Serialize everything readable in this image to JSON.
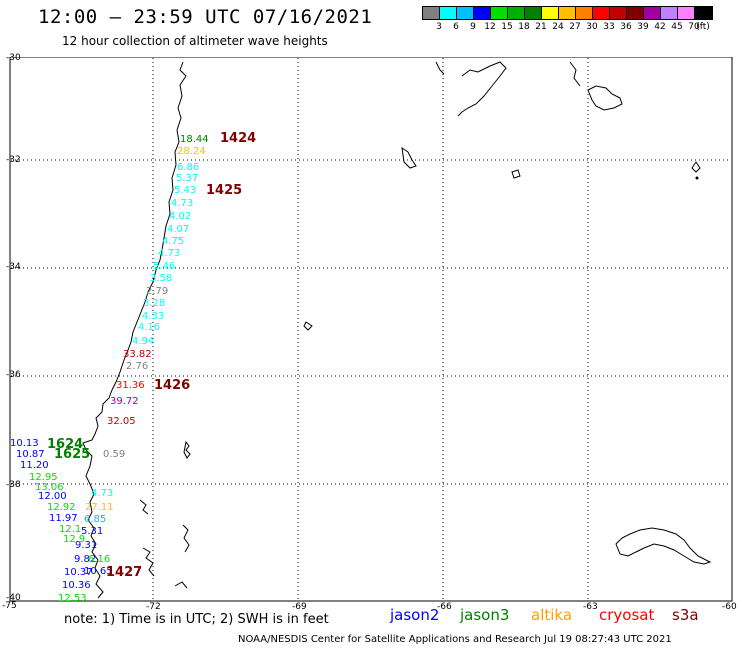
{
  "header": {
    "title": "12:00 — 23:59 UTC 07/16/2021",
    "subtitle": "12 hour collection of altimeter wave heights"
  },
  "colorbar": {
    "swatches": [
      "#808080",
      "#00ffff",
      "#00bfff",
      "#0000ff",
      "#00e000",
      "#00b000",
      "#008000",
      "#ffff00",
      "#ffc000",
      "#ff8000",
      "#ff0000",
      "#c00000",
      "#800000",
      "#a000a0",
      "#c080ff",
      "#ff80ff",
      "#000000"
    ],
    "ticks": [
      "3",
      "6",
      "9",
      "12",
      "15",
      "18",
      "21",
      "24",
      "27",
      "30",
      "33",
      "36",
      "39",
      "42",
      "45",
      "70",
      "(ft)"
    ]
  },
  "map": {
    "lat_labels": [
      "-30",
      "-32",
      "-34",
      "-36",
      "-38",
      "-40"
    ],
    "lon_labels": [
      "-75",
      "-72",
      "-69",
      "-66",
      "-63",
      "-60"
    ],
    "wave_heights": [
      {
        "text": "18.44",
        "color": "#008000"
      },
      {
        "text": "28.24",
        "color": "#ffc000"
      },
      {
        "text": "6.86",
        "color": "#00ffff"
      },
      {
        "text": "5.37",
        "color": "#00ffff"
      },
      {
        "text": "5.43",
        "color": "#00ffff"
      },
      {
        "text": "4.73",
        "color": "#00ffff"
      },
      {
        "text": "4.02",
        "color": "#00ffff"
      },
      {
        "text": "4.07",
        "color": "#00ffff"
      },
      {
        "text": "4.75",
        "color": "#00ffff"
      },
      {
        "text": "4.73",
        "color": "#00ffff"
      },
      {
        "text": "5.46",
        "color": "#00ffff"
      },
      {
        "text": "3.58",
        "color": "#00ffff"
      },
      {
        "text": "2.79",
        "color": "#808080"
      },
      {
        "text": "3.28",
        "color": "#00ffff"
      },
      {
        "text": "4.33",
        "color": "#00ffff"
      },
      {
        "text": "4.16",
        "color": "#00ffff"
      },
      {
        "text": "4.94",
        "color": "#00ffff"
      },
      {
        "text": "33.82",
        "color": "#c00000"
      },
      {
        "text": "2.76",
        "color": "#808080"
      },
      {
        "text": "31.36",
        "color": "#ff0000"
      },
      {
        "text": "39.72",
        "color": "#a000a0"
      },
      {
        "text": "32.05",
        "color": "#c00000"
      },
      {
        "text": "10.13",
        "color": "#0000ff"
      },
      {
        "text": "10.87",
        "color": "#0000ff"
      },
      {
        "text": "11.20",
        "color": "#0000ff"
      },
      {
        "text": "0.59",
        "color": "#808080"
      },
      {
        "text": "12.95",
        "color": "#00e000"
      },
      {
        "text": "13.06",
        "color": "#00e000"
      },
      {
        "text": "12.00",
        "color": "#0000ff"
      },
      {
        "text": "4.73",
        "color": "#00ffff"
      },
      {
        "text": "12.92",
        "color": "#00e000"
      },
      {
        "text": "27.11",
        "color": "#ffc000"
      },
      {
        "text": "11.97",
        "color": "#0000ff"
      },
      {
        "text": "6.85",
        "color": "#00bfff"
      },
      {
        "text": "12.1",
        "color": "#00e000"
      },
      {
        "text": "5.31",
        "color": "#0000ff"
      },
      {
        "text": "12.9",
        "color": "#00e000"
      },
      {
        "text": "9.31",
        "color": "#0000ff"
      },
      {
        "text": "9.82",
        "color": "#0000ff"
      },
      {
        "text": "6.16",
        "color": "#00e000"
      },
      {
        "text": "10.37",
        "color": "#0000ff"
      },
      {
        "text": "10.65",
        "color": "#0000ff"
      },
      {
        "text": "10.36",
        "color": "#0000ff"
      },
      {
        "text": "12.53",
        "color": "#00e000"
      }
    ],
    "passes": [
      {
        "text": "1424",
        "color": "#800000"
      },
      {
        "text": "1425",
        "color": "#800000"
      },
      {
        "text": "1426",
        "color": "#800000"
      },
      {
        "text": "1624",
        "color": "#008000"
      },
      {
        "text": "1625",
        "color": "#008000"
      },
      {
        "text": "1427",
        "color": "#800000"
      }
    ]
  },
  "footer": {
    "note": "note: 1) Time is in UTC; 2) SWH is in feet",
    "satellites": [
      {
        "name": "jason2",
        "color": "#0000ff"
      },
      {
        "name": "jason3",
        "color": "#008000"
      },
      {
        "name": "altika",
        "color": "#ffa000"
      },
      {
        "name": "cryosat",
        "color": "#ff0000"
      },
      {
        "name": "s3a",
        "color": "#800000"
      }
    ],
    "credit": "NOAA/NESDIS Center for Satellite Applications and Research    Jul 19 08:27:43 UTC 2021"
  }
}
